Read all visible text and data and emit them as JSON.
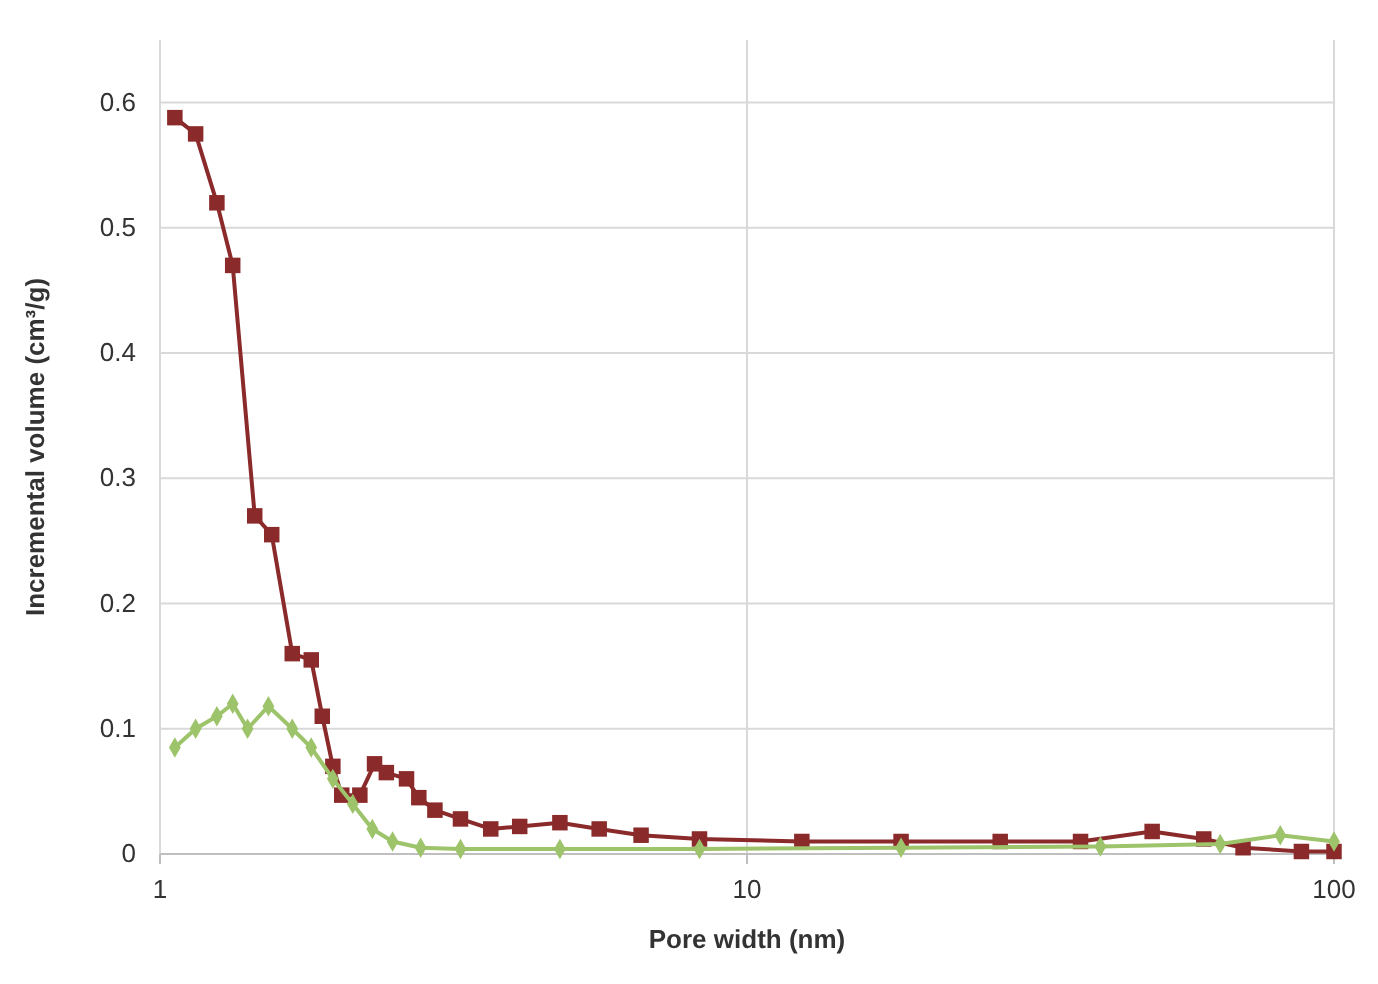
{
  "chart_data": {
    "type": "line",
    "xlabel": "Pore width (nm)",
    "ylabel": "Incremental volume (cm³/g)",
    "log": "x",
    "xlim": [
      1,
      100
    ],
    "xticks": [
      1,
      10,
      100
    ],
    "ylim": [
      0,
      0.65
    ],
    "yticks": [
      0,
      0.1,
      0.2,
      0.3,
      0.4,
      0.5,
      0.6
    ],
    "grid": true,
    "series": [
      {
        "color": "#8b2a2a",
        "marker": "square",
        "x": [
          1.06,
          1.15,
          1.25,
          1.33,
          1.45,
          1.55,
          1.68,
          1.81,
          1.89,
          1.97,
          2.04,
          2.19,
          2.32,
          2.43,
          2.63,
          2.76,
          2.94,
          3.25,
          3.66,
          4.1,
          4.8,
          5.6,
          6.6,
          8.3,
          12.4,
          18.3,
          27,
          37,
          49,
          60,
          70,
          88,
          100
        ],
        "values": [
          0.588,
          0.575,
          0.52,
          0.47,
          0.27,
          0.255,
          0.16,
          0.155,
          0.11,
          0.07,
          0.047,
          0.047,
          0.072,
          0.065,
          0.06,
          0.045,
          0.035,
          0.028,
          0.02,
          0.022,
          0.025,
          0.02,
          0.015,
          0.012,
          0.01,
          0.01,
          0.01,
          0.01,
          0.018,
          0.012,
          0.005,
          0.002,
          0.002
        ]
      },
      {
        "color": "#9dc36b",
        "marker": "diamond",
        "x": [
          1.06,
          1.15,
          1.25,
          1.33,
          1.41,
          1.53,
          1.68,
          1.81,
          1.97,
          2.13,
          2.3,
          2.49,
          2.78,
          3.25,
          4.8,
          8.3,
          18.3,
          40,
          64,
          81,
          100
        ],
        "values": [
          0.085,
          0.1,
          0.11,
          0.12,
          0.1,
          0.118,
          0.1,
          0.085,
          0.06,
          0.04,
          0.02,
          0.01,
          0.005,
          0.004,
          0.004,
          0.004,
          0.005,
          0.006,
          0.008,
          0.015,
          0.01
        ]
      }
    ]
  }
}
